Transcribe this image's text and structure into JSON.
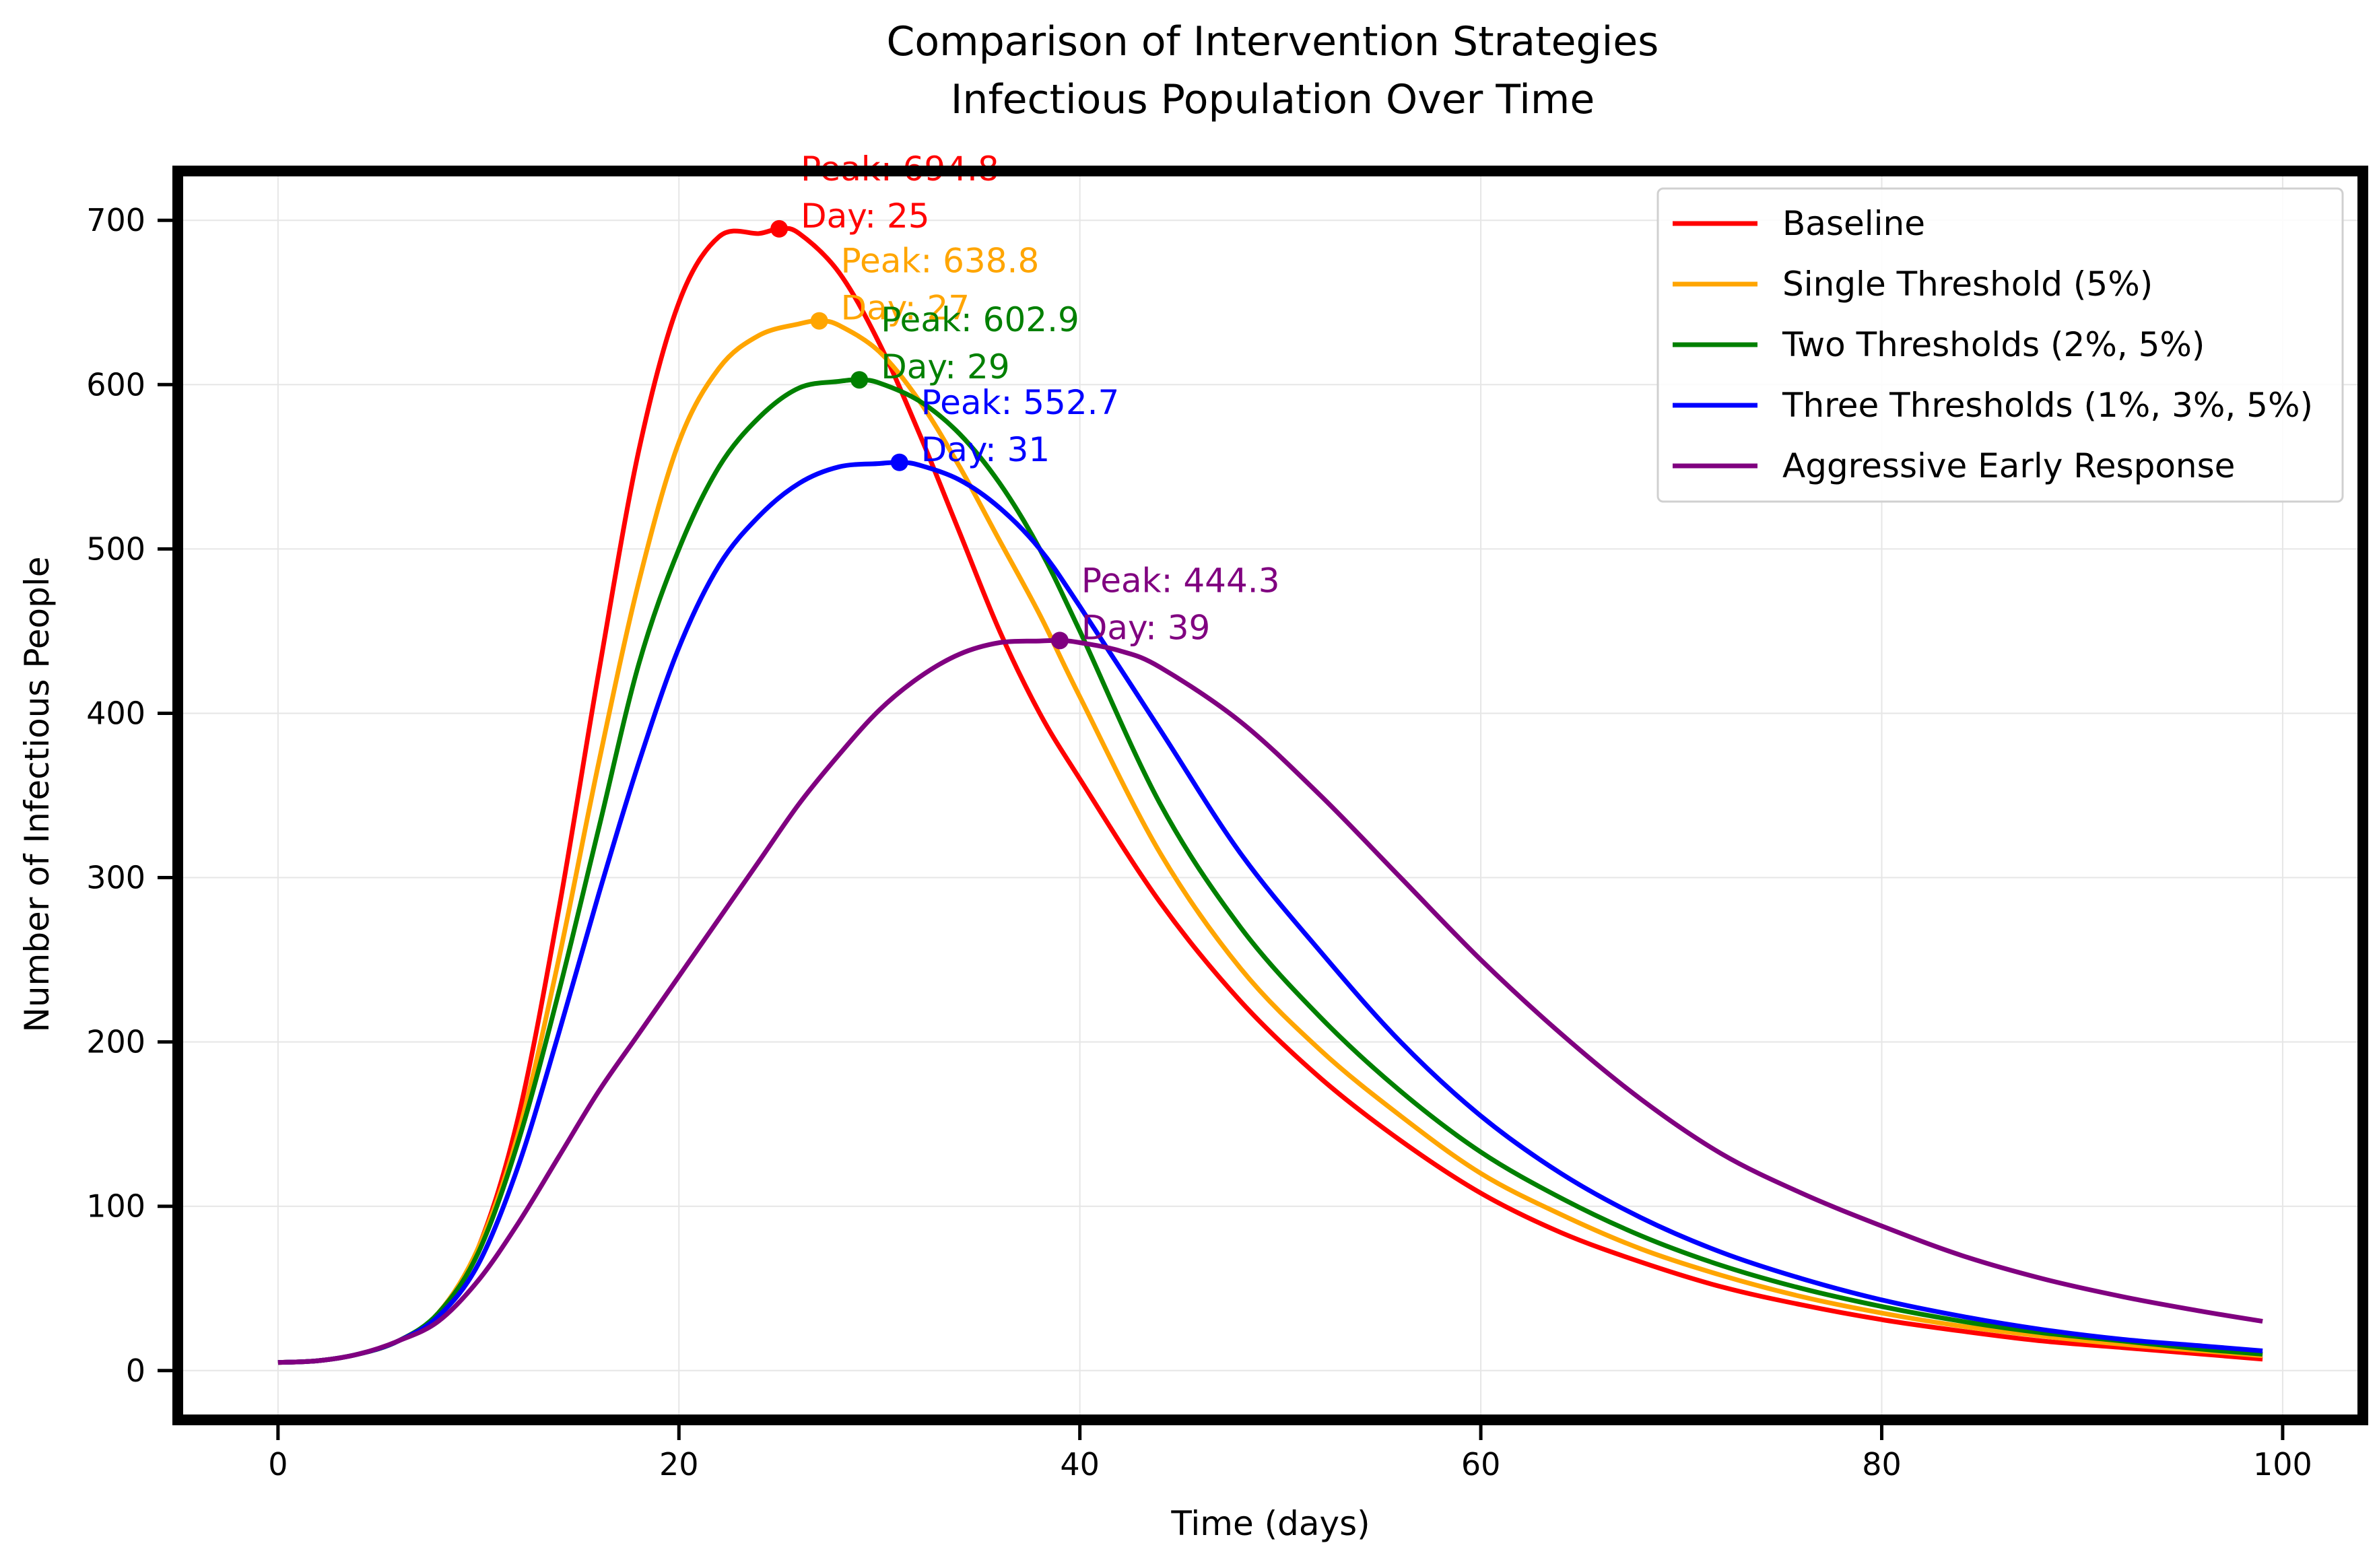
{
  "chart_data": {
    "type": "line",
    "title": "Comparison of Intervention Strategies",
    "subtitle": "Infectious Population Over Time",
    "xlabel": "Time (days)",
    "ylabel": "Number of Infectious People",
    "xlim": [
      -5,
      104
    ],
    "ylim": [
      -30,
      730
    ],
    "xticks": [
      0,
      20,
      40,
      60,
      80,
      100
    ],
    "yticks": [
      0,
      100,
      200,
      300,
      400,
      500,
      600,
      700
    ],
    "grid": true,
    "legend_position": "top-right",
    "series": [
      {
        "name": "Baseline",
        "color": "#ff0000",
        "x": [
          0,
          2,
          4,
          6,
          8,
          10,
          12,
          14,
          16,
          18,
          20,
          22,
          24,
          25,
          26,
          28,
          30,
          32,
          34,
          36,
          38,
          40,
          44,
          48,
          52,
          56,
          60,
          64,
          68,
          72,
          76,
          80,
          84,
          88,
          92,
          96,
          99
        ],
        "y": [
          5,
          6,
          10,
          18,
          35,
          75,
          155,
          280,
          425,
          560,
          650,
          690,
          692,
          694.8,
          692,
          668,
          625,
          570,
          510,
          450,
          400,
          360,
          285,
          225,
          178,
          140,
          108,
          84,
          66,
          51,
          40,
          31,
          24,
          18,
          14,
          10,
          7
        ],
        "peak": {
          "x": 25,
          "y": 694.8,
          "label_line1": "Peak: 694.8",
          "label_line2": "Day: 25"
        }
      },
      {
        "name": "Single Threshold (5%)",
        "color": "#ffa500",
        "x": [
          0,
          2,
          4,
          6,
          8,
          10,
          12,
          14,
          16,
          18,
          20,
          22,
          24,
          26,
          27,
          28,
          30,
          32,
          34,
          36,
          38,
          40,
          44,
          48,
          52,
          56,
          60,
          64,
          68,
          72,
          76,
          80,
          84,
          88,
          92,
          96,
          99
        ],
        "y": [
          5,
          6,
          10,
          18,
          35,
          75,
          145,
          250,
          370,
          480,
          565,
          610,
          630,
          637,
          638.8,
          636,
          620,
          590,
          550,
          505,
          460,
          410,
          315,
          245,
          195,
          155,
          120,
          95,
          74,
          58,
          45,
          35,
          27,
          21,
          16,
          12,
          9
        ],
        "peak": {
          "x": 27,
          "y": 638.8,
          "label_line1": "Peak: 638.8",
          "label_line2": "Day: 27"
        }
      },
      {
        "name": "Two Thresholds (2%, 5%)",
        "color": "#008000",
        "x": [
          0,
          2,
          4,
          6,
          8,
          10,
          12,
          14,
          16,
          18,
          20,
          22,
          24,
          26,
          28,
          29,
          30,
          32,
          34,
          36,
          38,
          40,
          44,
          48,
          52,
          56,
          60,
          64,
          68,
          72,
          76,
          80,
          84,
          88,
          92,
          96,
          99
        ],
        "y": [
          5,
          6,
          10,
          18,
          35,
          72,
          140,
          230,
          330,
          430,
          500,
          550,
          580,
          598,
          602,
          602.9,
          601,
          590,
          570,
          540,
          500,
          450,
          345,
          270,
          215,
          170,
          133,
          105,
          82,
          64,
          50,
          39,
          30,
          23,
          18,
          13,
          10
        ],
        "peak": {
          "x": 29,
          "y": 602.9,
          "label_line1": "Peak: 602.9",
          "label_line2": "Day: 29"
        }
      },
      {
        "name": "Three Thresholds (1%, 3%, 5%)",
        "color": "#0000ff",
        "x": [
          0,
          2,
          4,
          6,
          8,
          10,
          12,
          14,
          16,
          18,
          20,
          22,
          24,
          26,
          28,
          30,
          31,
          32,
          34,
          36,
          38,
          40,
          44,
          48,
          52,
          56,
          60,
          64,
          68,
          72,
          76,
          80,
          84,
          88,
          92,
          96,
          99
        ],
        "y": [
          5,
          6,
          10,
          18,
          33,
          65,
          125,
          205,
          290,
          370,
          440,
          490,
          520,
          540,
          550,
          552,
          552.7,
          551,
          542,
          525,
          500,
          465,
          390,
          315,
          255,
          200,
          155,
          120,
          93,
          72,
          56,
          43,
          33,
          25,
          19,
          15,
          12
        ],
        "peak": {
          "x": 31,
          "y": 552.7,
          "label_line1": "Peak: 552.7",
          "label_line2": "Day: 31"
        }
      },
      {
        "name": "Aggressive Early Response",
        "color": "#800080",
        "x": [
          0,
          2,
          4,
          6,
          8,
          10,
          12,
          14,
          16,
          18,
          20,
          22,
          24,
          26,
          28,
          30,
          32,
          34,
          36,
          38,
          39,
          40,
          42,
          44,
          48,
          52,
          56,
          60,
          64,
          68,
          72,
          76,
          80,
          84,
          88,
          92,
          96,
          99
        ],
        "y": [
          5,
          6,
          10,
          18,
          30,
          55,
          90,
          130,
          170,
          205,
          240,
          275,
          310,
          345,
          375,
          402,
          422,
          436,
          443,
          444,
          444.3,
          443,
          438,
          428,
          395,
          350,
          300,
          250,
          205,
          165,
          132,
          108,
          88,
          70,
          56,
          45,
          36,
          30
        ],
        "peak": {
          "x": 39,
          "y": 444.3,
          "label_line1": "Peak: 444.3",
          "label_line2": "Day: 39"
        }
      }
    ]
  }
}
